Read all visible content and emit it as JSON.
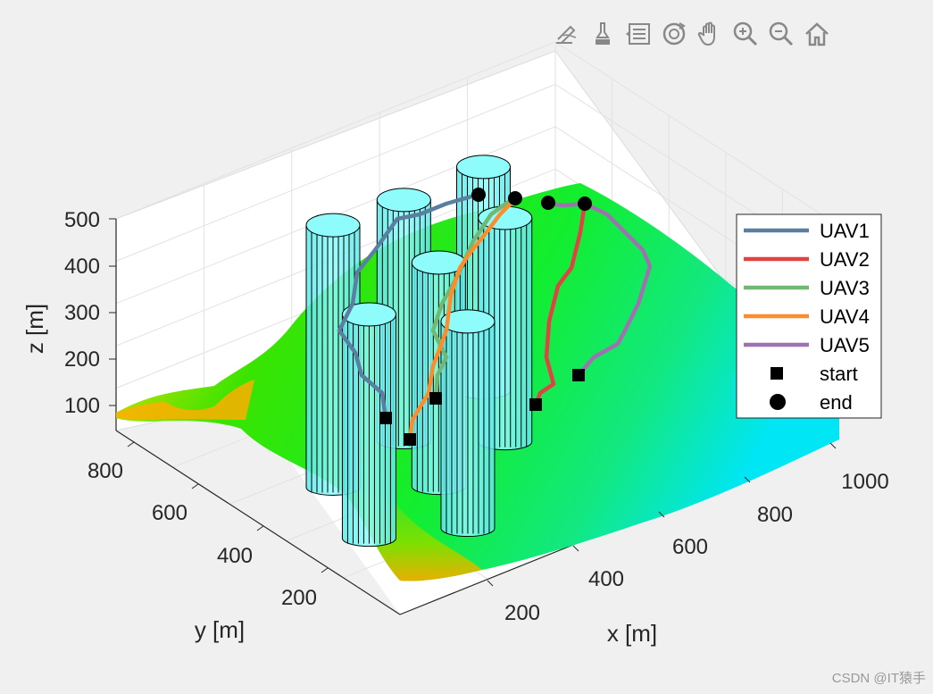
{
  "toolbar": {
    "buttons": [
      {
        "name": "edit-plot-icon"
      },
      {
        "name": "brush-icon"
      },
      {
        "name": "data-tips-icon"
      },
      {
        "name": "rotate-3d-icon"
      },
      {
        "name": "pan-hand-icon"
      },
      {
        "name": "zoom-in-icon"
      },
      {
        "name": "zoom-out-icon"
      },
      {
        "name": "home-icon"
      }
    ]
  },
  "watermark": "CSDN @IT猿手",
  "chart_data": {
    "type": "3d-surface-with-paths",
    "xlabel": "x [m]",
    "ylabel": "y [m]",
    "zlabel": "z [m]",
    "xlim": [
      0,
      1000
    ],
    "ylim": [
      0,
      1000
    ],
    "zlim": [
      0,
      500
    ],
    "x_ticks": [
      "200",
      "400",
      "600",
      "800",
      "1000"
    ],
    "y_ticks": [
      "200",
      "400",
      "600",
      "800"
    ],
    "z_ticks": [
      "100",
      "200",
      "300",
      "400",
      "500"
    ],
    "colors": {
      "UAV1": "#5a7fa0",
      "UAV2": "#e04343",
      "UAV3": "#72b872",
      "UAV4": "#ff8c2a",
      "UAV5": "#a070b0",
      "cylinder": "#7ff7f7"
    },
    "legend": [
      {
        "label": "UAV1",
        "kind": "line",
        "color": "#5a7fa0"
      },
      {
        "label": "UAV2",
        "kind": "line",
        "color": "#e04343"
      },
      {
        "label": "UAV3",
        "kind": "line",
        "color": "#72b872"
      },
      {
        "label": "UAV4",
        "kind": "line",
        "color": "#ff8c2a"
      },
      {
        "label": "UAV5",
        "kind": "line",
        "color": "#a070b0"
      },
      {
        "label": "start",
        "kind": "square",
        "color": "#000000"
      },
      {
        "label": "end",
        "kind": "circle",
        "color": "#000000"
      }
    ],
    "obstacles": [
      {
        "name": "cylinder-1",
        "x": 300,
        "y": 700,
        "z_top": 490
      },
      {
        "name": "cylinder-2",
        "x": 500,
        "y": 760,
        "z_top": 440
      },
      {
        "name": "cylinder-3",
        "x": 720,
        "y": 820,
        "z_top": 400
      },
      {
        "name": "cylinder-4",
        "x": 240,
        "y": 480,
        "z_top": 400
      },
      {
        "name": "cylinder-5",
        "x": 450,
        "y": 560,
        "z_top": 400
      },
      {
        "name": "cylinder-6",
        "x": 640,
        "y": 620,
        "z_top": 400
      },
      {
        "name": "cylinder-7",
        "x": 400,
        "y": 380,
        "z_top": 360
      }
    ]
  }
}
